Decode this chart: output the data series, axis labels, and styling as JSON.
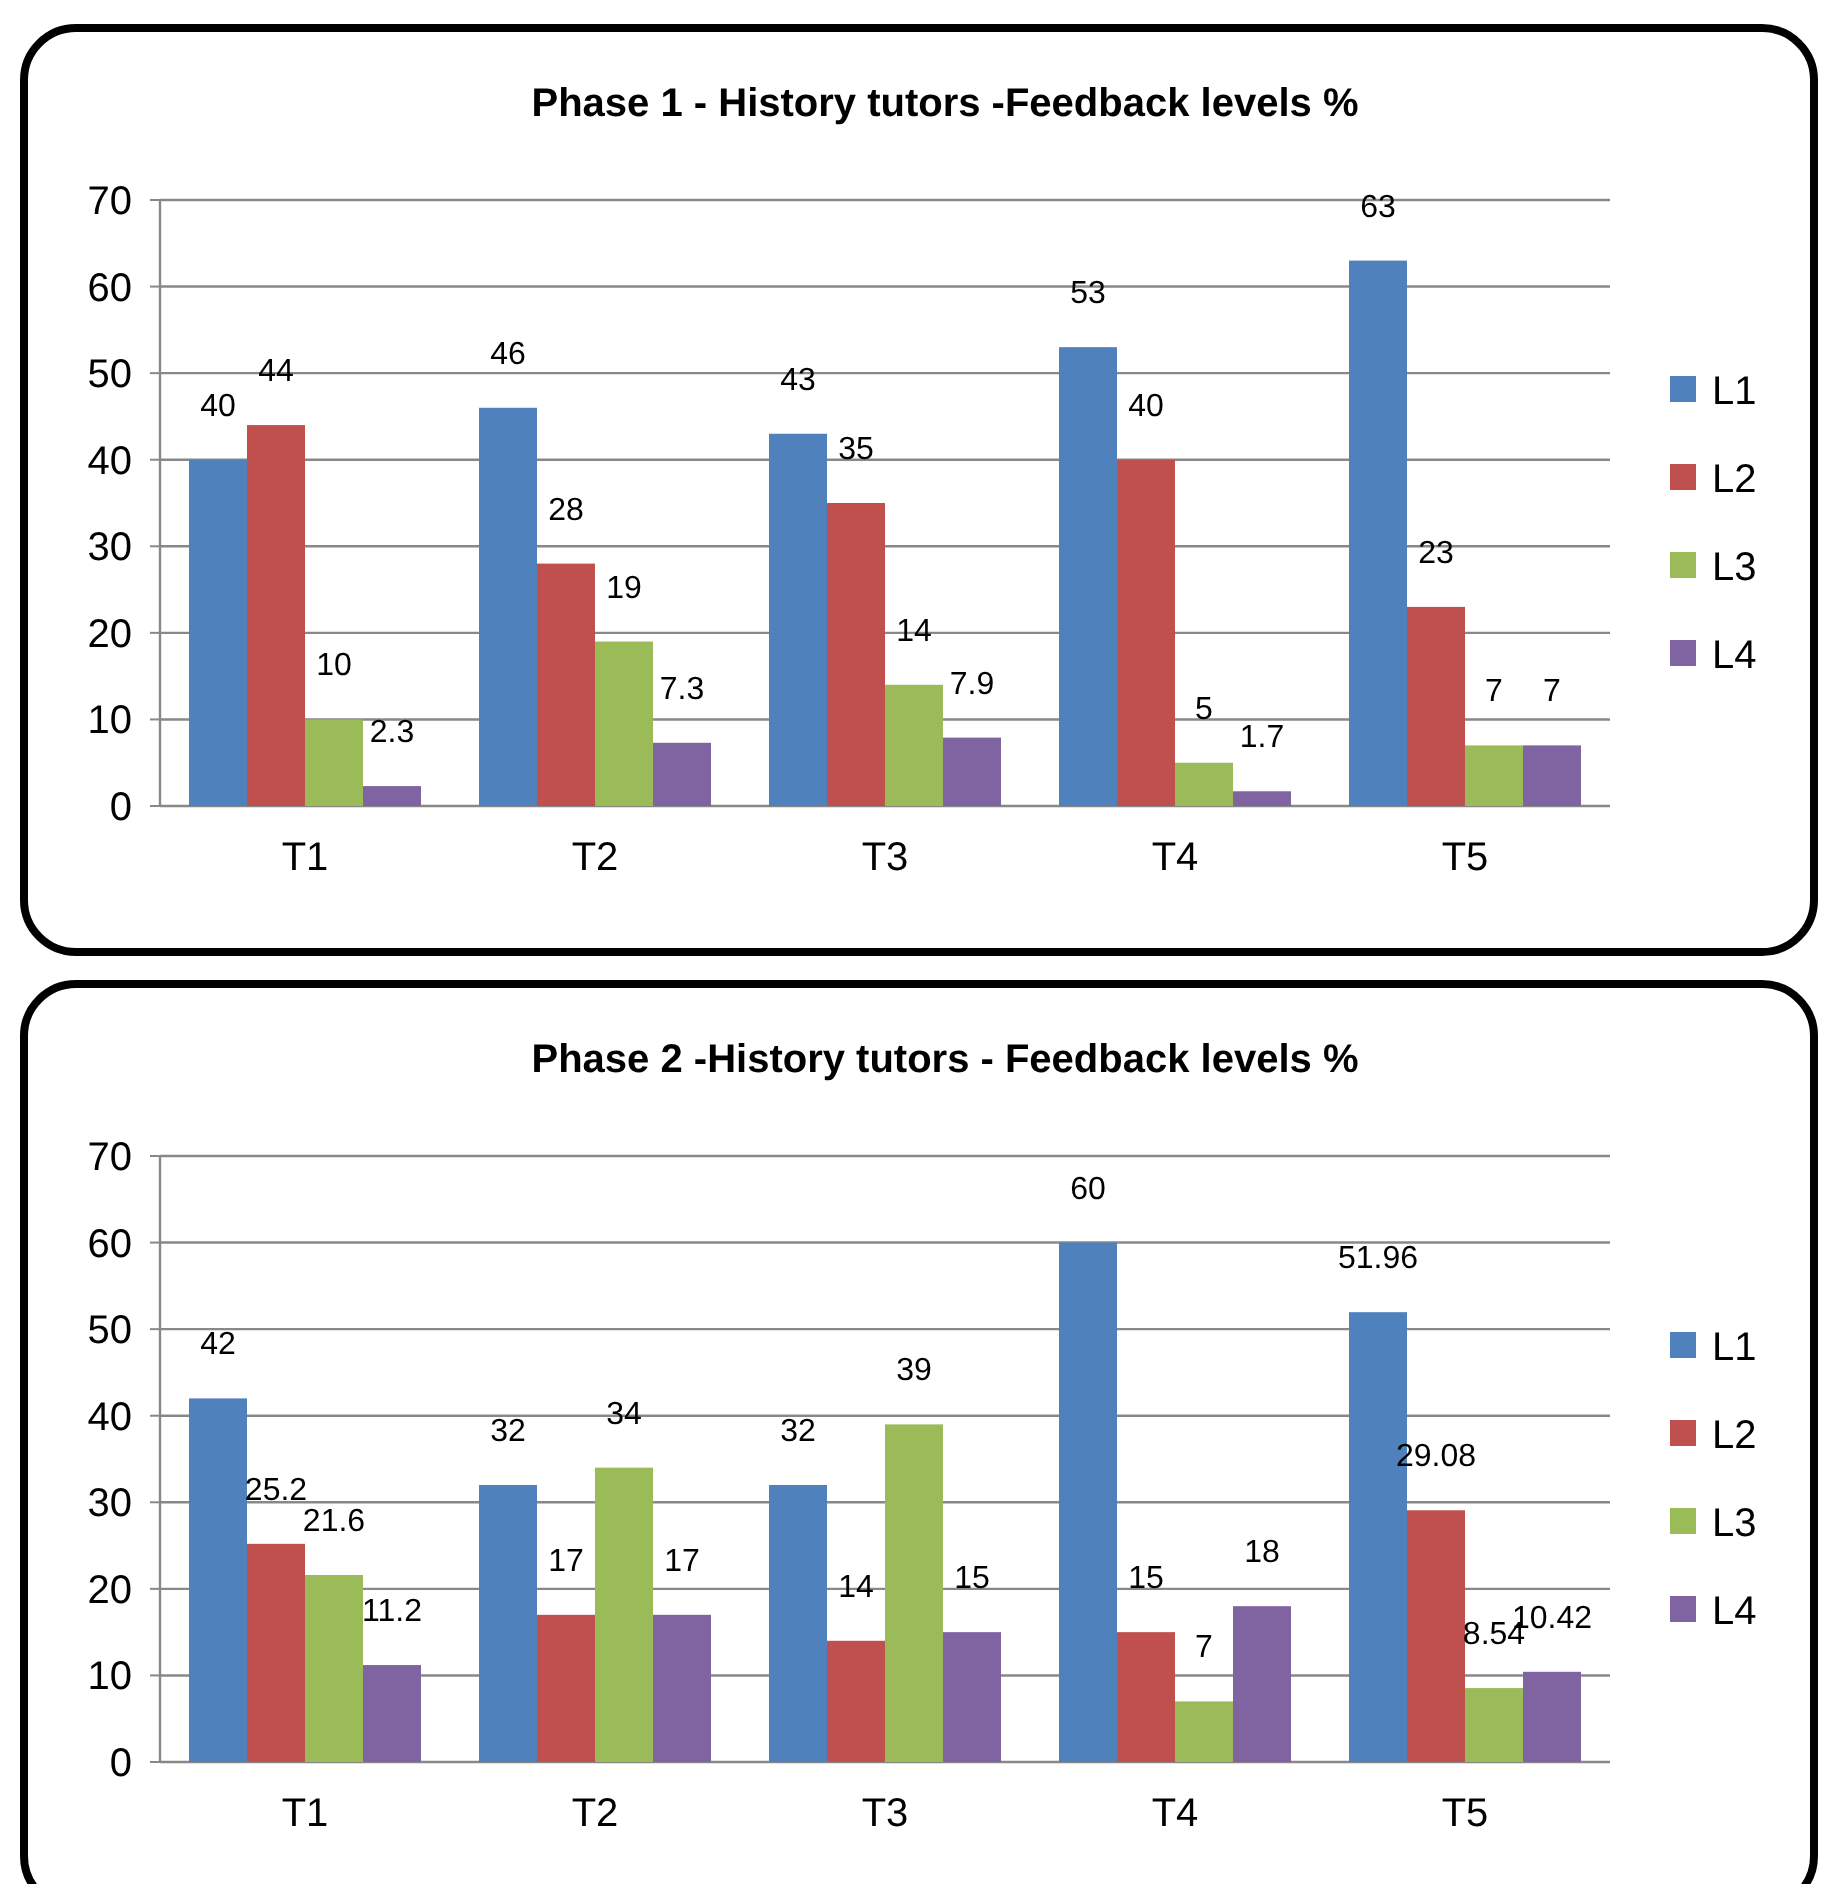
{
  "chart_data": [
    {
      "type": "bar",
      "title": "Phase 1 - History tutors -Feedback levels %",
      "categories": [
        "T1",
        "T2",
        "T3",
        "T4",
        "T5"
      ],
      "series": [
        {
          "name": "L1",
          "color": "#4f81bd",
          "values": [
            40,
            46,
            43,
            53,
            63
          ]
        },
        {
          "name": "L2",
          "color": "#c0504d",
          "values": [
            44,
            28,
            35,
            40,
            23
          ]
        },
        {
          "name": "L3",
          "color": "#9bbb59",
          "values": [
            10,
            19,
            14,
            5,
            7
          ]
        },
        {
          "name": "L4",
          "color": "#8064a2",
          "values": [
            2.3,
            7.3,
            7.9,
            1.7,
            7
          ]
        }
      ],
      "ylim": [
        0,
        70
      ],
      "yticks": [
        0,
        10,
        20,
        30,
        40,
        50,
        60,
        70
      ],
      "grid": "y",
      "legend": "right",
      "data_labels": true
    },
    {
      "type": "bar",
      "title": "Phase 2 -History tutors - Feedback levels %",
      "categories": [
        "T1",
        "T2",
        "T3",
        "T4",
        "T5"
      ],
      "series": [
        {
          "name": "L1",
          "color": "#4f81bd",
          "values": [
            42,
            32,
            32,
            60,
            51.96
          ]
        },
        {
          "name": "L2",
          "color": "#c0504d",
          "values": [
            25.2,
            17,
            14,
            15,
            29.08
          ]
        },
        {
          "name": "L3",
          "color": "#9bbb59",
          "values": [
            21.6,
            34,
            39,
            7,
            8.54
          ]
        },
        {
          "name": "L4",
          "color": "#8064a2",
          "values": [
            11.2,
            17,
            15,
            18,
            10.42
          ]
        }
      ],
      "ylim": [
        0,
        70
      ],
      "yticks": [
        0,
        10,
        20,
        30,
        40,
        50,
        60,
        70
      ],
      "grid": "y",
      "legend": "right",
      "data_labels": true
    }
  ]
}
